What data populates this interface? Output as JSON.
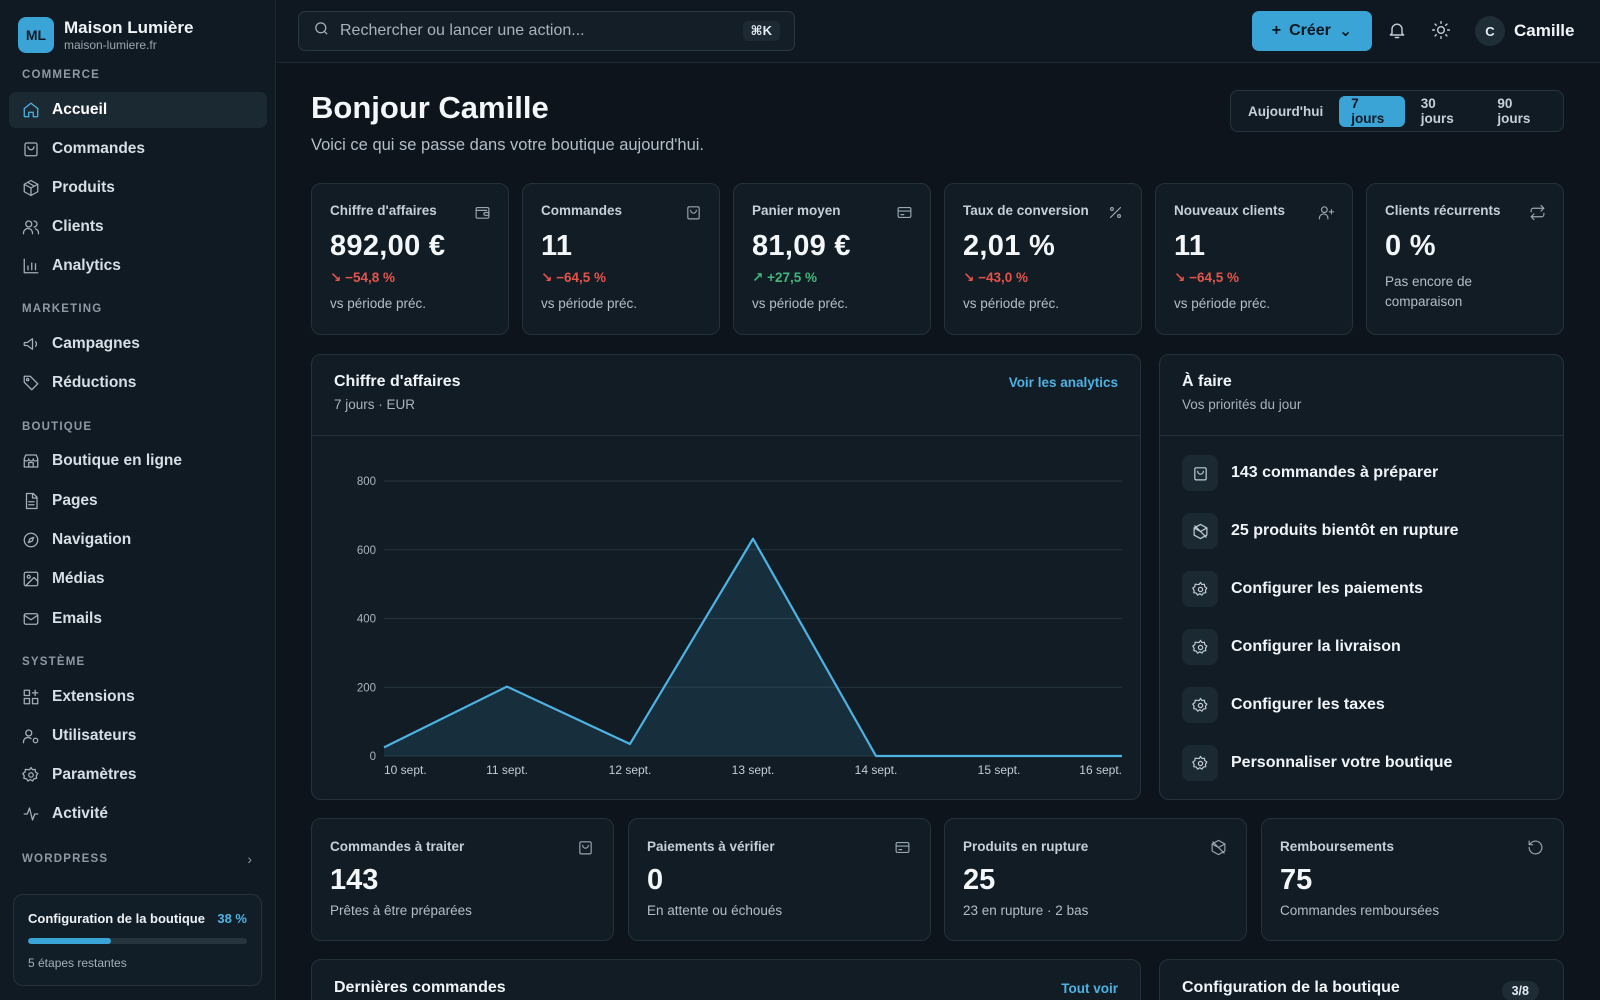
{
  "brand": {
    "logo_initials": "ML",
    "name": "Maison Lumière",
    "domain": "maison-lumiere.fr"
  },
  "sidebar": {
    "sections": [
      {
        "title": "COMMERCE",
        "items": [
          {
            "label": "Accueil",
            "icon": "home-icon",
            "active": true
          },
          {
            "label": "Commandes",
            "icon": "shopping-bag-icon"
          },
          {
            "label": "Produits",
            "icon": "package-icon"
          },
          {
            "label": "Clients",
            "icon": "users-icon"
          },
          {
            "label": "Analytics",
            "icon": "bar-chart-icon"
          }
        ]
      },
      {
        "title": "MARKETING",
        "items": [
          {
            "label": "Campagnes",
            "icon": "megaphone-icon"
          },
          {
            "label": "Réductions",
            "icon": "tag-icon"
          }
        ]
      },
      {
        "title": "BOUTIQUE",
        "items": [
          {
            "label": "Boutique en ligne",
            "icon": "store-icon"
          },
          {
            "label": "Pages",
            "icon": "file-icon"
          },
          {
            "label": "Navigation",
            "icon": "compass-icon"
          },
          {
            "label": "Médias",
            "icon": "image-icon"
          },
          {
            "label": "Emails",
            "icon": "mail-icon"
          }
        ]
      },
      {
        "title": "SYSTÈME",
        "items": [
          {
            "label": "Extensions",
            "icon": "puzzle-icon"
          },
          {
            "label": "Utilisateurs",
            "icon": "user-cog-icon"
          },
          {
            "label": "Paramètres",
            "icon": "gear-icon"
          },
          {
            "label": "Activité",
            "icon": "activity-icon"
          }
        ]
      }
    ],
    "wordpress_label": "WORDPRESS",
    "setup": {
      "title": "Configuration de la boutique",
      "percent_label": "38 %",
      "percent": 38,
      "steps_left": "5 étapes restantes"
    }
  },
  "topbar": {
    "search_placeholder": "Rechercher ou lancer une action...",
    "shortcut": "⌘K",
    "create_label": "Créer",
    "user_initial": "C",
    "user_name": "Camille"
  },
  "header": {
    "greeting": "Bonjour Camille",
    "subtitle": "Voici ce qui se passe dans votre boutique aujourd'hui.",
    "periods": [
      "Aujourd'hui",
      "7 jours",
      "30 jours",
      "90 jours"
    ],
    "selected_period": 1
  },
  "kpis": [
    {
      "label": "Chiffre d'affaires",
      "icon": "wallet-icon",
      "value": "892,00 €",
      "delta": "−54,8 %",
      "trend": "down",
      "note": "vs période préc."
    },
    {
      "label": "Commandes",
      "icon": "shopping-bag-icon",
      "value": "11",
      "delta": "−64,5 %",
      "trend": "down",
      "note": "vs période préc."
    },
    {
      "label": "Panier moyen",
      "icon": "credit-card-icon",
      "value": "81,09 €",
      "delta": "+27,5 %",
      "trend": "up",
      "note": "vs période préc."
    },
    {
      "label": "Taux de conversion",
      "icon": "percent-icon",
      "value": "2,01 %",
      "delta": "−43,0 %",
      "trend": "down",
      "note": "vs période préc."
    },
    {
      "label": "Nouveaux clients",
      "icon": "user-plus-icon",
      "value": "11",
      "delta": "−64,5 %",
      "trend": "down",
      "note": "vs période préc."
    },
    {
      "label": "Clients récurrents",
      "icon": "repeat-icon",
      "value": "0 %",
      "delta": "",
      "trend": "none",
      "note": "Pas encore de comparaison"
    }
  ],
  "revenue_card": {
    "title": "Chiffre d'affaires",
    "subtitle": "7 jours · EUR",
    "link": "Voir les analytics"
  },
  "chart_data": {
    "type": "area",
    "x": [
      "10 sept.",
      "11 sept.",
      "12 sept.",
      "13 sept.",
      "14 sept.",
      "15 sept.",
      "16 sept."
    ],
    "values": [
      25,
      202,
      35,
      632,
      0,
      0,
      0
    ],
    "yticks": [
      0,
      200,
      400,
      600,
      800
    ],
    "ylim": [
      0,
      800
    ],
    "grid": true,
    "color": "#4eb3e3"
  },
  "todo": {
    "title": "À faire",
    "subtitle": "Vos priorités du jour",
    "items": [
      {
        "label": "143 commandes à préparer",
        "icon": "shopping-bag-icon"
      },
      {
        "label": "25 produits bientôt en rupture",
        "icon": "package-off-icon"
      },
      {
        "label": "Configurer les paiements",
        "icon": "gear-icon"
      },
      {
        "label": "Configurer la livraison",
        "icon": "gear-icon"
      },
      {
        "label": "Configurer les taxes",
        "icon": "gear-icon"
      },
      {
        "label": "Personnaliser votre boutique",
        "icon": "gear-icon"
      }
    ]
  },
  "stats": [
    {
      "label": "Commandes à traiter",
      "icon": "shopping-bag-icon",
      "value": "143",
      "note": "Prêtes à être préparées"
    },
    {
      "label": "Paiements à vérifier",
      "icon": "credit-card-icon",
      "value": "0",
      "note": "En attente ou échoués"
    },
    {
      "label": "Produits en rupture",
      "icon": "package-off-icon",
      "value": "25",
      "note": "23 en rupture · 2 bas"
    },
    {
      "label": "Remboursements",
      "icon": "refund-icon",
      "value": "75",
      "note": "Commandes remboursées"
    }
  ],
  "recent_orders": {
    "title": "Dernières commandes",
    "link": "Tout voir"
  },
  "store_setup": {
    "title": "Configuration de la boutique",
    "badge": "3/8"
  },
  "colors": {
    "accent": "#3aa4d6",
    "negative": "#e5534b",
    "positive": "#3fb97a",
    "background": "#0d141b"
  }
}
